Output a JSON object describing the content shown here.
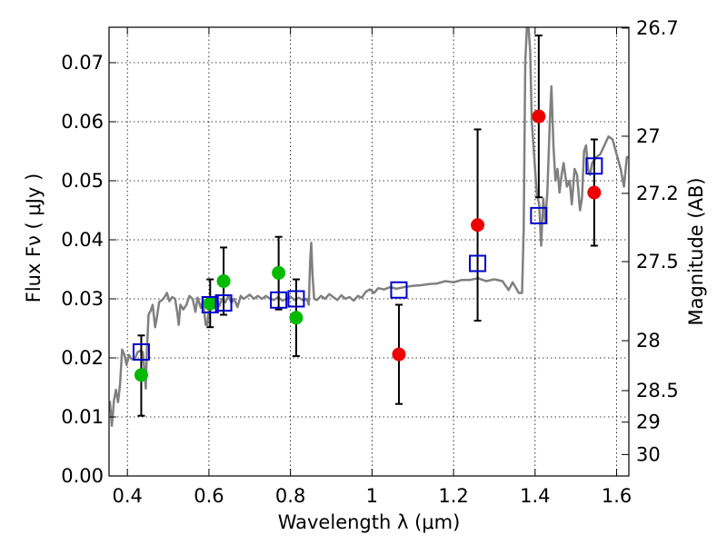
{
  "chart_data": {
    "type": "scatter",
    "title": "",
    "xlabel": "Wavelength  λ (μm)",
    "ylabel": "Flux  Fν  ( μJy )",
    "ylabel_right": "Magnitude (AB)",
    "xlim": [
      0.355,
      1.63
    ],
    "ylim": [
      0.0,
      0.076
    ],
    "grid": true,
    "x_ticks": [
      {
        "value": 0.4,
        "label": "0.4"
      },
      {
        "value": 0.6,
        "label": "0.6"
      },
      {
        "value": 0.8,
        "label": "0.8"
      },
      {
        "value": 1.0,
        "label": "1"
      },
      {
        "value": 1.2,
        "label": "1.2"
      },
      {
        "value": 1.4,
        "label": "1.4"
      },
      {
        "value": 1.6,
        "label": "1.6"
      }
    ],
    "y_ticks": [
      {
        "value": 0.0,
        "label": "0.00"
      },
      {
        "value": 0.01,
        "label": "0.01"
      },
      {
        "value": 0.02,
        "label": "0.02"
      },
      {
        "value": 0.03,
        "label": "0.03"
      },
      {
        "value": 0.04,
        "label": "0.04"
      },
      {
        "value": 0.05,
        "label": "0.05"
      },
      {
        "value": 0.06,
        "label": "0.06"
      },
      {
        "value": 0.07,
        "label": "0.07"
      }
    ],
    "right_ticks": [
      {
        "label": "26.7"
      },
      {
        "label": "27"
      },
      {
        "label": "27.2"
      },
      {
        "label": "27.5"
      },
      {
        "label": "28"
      },
      {
        "label": "28.5"
      },
      {
        "label": "29"
      },
      {
        "label": "30"
      }
    ],
    "spectrum": [
      [
        0.357,
        0.0127
      ],
      [
        0.362,
        0.0085
      ],
      [
        0.367,
        0.0128
      ],
      [
        0.372,
        0.0146
      ],
      [
        0.377,
        0.0125
      ],
      [
        0.382,
        0.0155
      ],
      [
        0.387,
        0.0214
      ],
      [
        0.393,
        0.0205
      ],
      [
        0.398,
        0.0188
      ],
      [
        0.404,
        0.0205
      ],
      [
        0.41,
        0.0198
      ],
      [
        0.418,
        0.0198
      ],
      [
        0.425,
        0.021
      ],
      [
        0.432,
        0.0212
      ],
      [
        0.438,
        0.021
      ],
      [
        0.442,
        0.0177
      ],
      [
        0.445,
        0.0148
      ],
      [
        0.448,
        0.0215
      ],
      [
        0.452,
        0.0273
      ],
      [
        0.457,
        0.028
      ],
      [
        0.462,
        0.029
      ],
      [
        0.468,
        0.0252
      ],
      [
        0.472,
        0.0267
      ],
      [
        0.478,
        0.0295
      ],
      [
        0.485,
        0.0298
      ],
      [
        0.49,
        0.0302
      ],
      [
        0.497,
        0.031
      ],
      [
        0.503,
        0.0296
      ],
      [
        0.51,
        0.0303
      ],
      [
        0.517,
        0.03
      ],
      [
        0.523,
        0.0273
      ],
      [
        0.526,
        0.0256
      ],
      [
        0.53,
        0.029
      ],
      [
        0.537,
        0.0282
      ],
      [
        0.545,
        0.029
      ],
      [
        0.552,
        0.0305
      ],
      [
        0.56,
        0.03
      ],
      [
        0.567,
        0.0278
      ],
      [
        0.572,
        0.0302
      ],
      [
        0.58,
        0.0285
      ],
      [
        0.586,
        0.0297
      ],
      [
        0.592,
        0.0256
      ],
      [
        0.596,
        0.0256
      ],
      [
        0.602,
        0.0298
      ],
      [
        0.61,
        0.0293
      ],
      [
        0.618,
        0.0305
      ],
      [
        0.625,
        0.0287
      ],
      [
        0.632,
        0.03
      ],
      [
        0.64,
        0.0294
      ],
      [
        0.648,
        0.0305
      ],
      [
        0.655,
        0.0293
      ],
      [
        0.662,
        0.03
      ],
      [
        0.67,
        0.0286
      ],
      [
        0.678,
        0.0305
      ],
      [
        0.685,
        0.03
      ],
      [
        0.692,
        0.0303
      ],
      [
        0.7,
        0.0307
      ],
      [
        0.71,
        0.03
      ],
      [
        0.72,
        0.0305
      ],
      [
        0.73,
        0.03
      ],
      [
        0.74,
        0.0305
      ],
      [
        0.75,
        0.03
      ],
      [
        0.76,
        0.0298
      ],
      [
        0.77,
        0.0303
      ],
      [
        0.78,
        0.0297
      ],
      [
        0.79,
        0.03
      ],
      [
        0.8,
        0.0304
      ],
      [
        0.81,
        0.0298
      ],
      [
        0.82,
        0.0302
      ],
      [
        0.83,
        0.0298
      ],
      [
        0.84,
        0.03
      ],
      [
        0.845,
        0.029
      ],
      [
        0.848,
        0.036
      ],
      [
        0.851,
        0.0395
      ],
      [
        0.854,
        0.034
      ],
      [
        0.858,
        0.03
      ],
      [
        0.865,
        0.0298
      ],
      [
        0.875,
        0.0305
      ],
      [
        0.885,
        0.03
      ],
      [
        0.895,
        0.0308
      ],
      [
        0.905,
        0.0303
      ],
      [
        0.915,
        0.0298
      ],
      [
        0.925,
        0.0306
      ],
      [
        0.935,
        0.03
      ],
      [
        0.945,
        0.0303
      ],
      [
        0.955,
        0.0297
      ],
      [
        0.965,
        0.0305
      ],
      [
        0.975,
        0.0302
      ],
      [
        0.985,
        0.0312
      ],
      [
        0.995,
        0.0316
      ],
      [
        1.005,
        0.031
      ],
      [
        1.015,
        0.0318
      ],
      [
        1.03,
        0.0316
      ],
      [
        1.045,
        0.032
      ],
      [
        1.06,
        0.0317
      ],
      [
        1.08,
        0.032
      ],
      [
        1.1,
        0.0322
      ],
      [
        1.12,
        0.0323
      ],
      [
        1.14,
        0.0325
      ],
      [
        1.16,
        0.0326
      ],
      [
        1.18,
        0.033
      ],
      [
        1.2,
        0.0328
      ],
      [
        1.22,
        0.0332
      ],
      [
        1.24,
        0.0332
      ],
      [
        1.26,
        0.0335
      ],
      [
        1.28,
        0.033
      ],
      [
        1.3,
        0.0333
      ],
      [
        1.32,
        0.033
      ],
      [
        1.335,
        0.0315
      ],
      [
        1.345,
        0.0328
      ],
      [
        1.36,
        0.031
      ],
      [
        1.368,
        0.031
      ],
      [
        1.372,
        0.042
      ],
      [
        1.376,
        0.07
      ],
      [
        1.38,
        0.076
      ],
      [
        1.384,
        0.076
      ],
      [
        1.388,
        0.072
      ],
      [
        1.392,
        0.06
      ],
      [
        1.398,
        0.054
      ],
      [
        1.404,
        0.048
      ],
      [
        1.41,
        0.046
      ],
      [
        1.415,
        0.039
      ],
      [
        1.42,
        0.047
      ],
      [
        1.425,
        0.043
      ],
      [
        1.43,
        0.048
      ],
      [
        1.436,
        0.06
      ],
      [
        1.44,
        0.066
      ],
      [
        1.445,
        0.056
      ],
      [
        1.45,
        0.05
      ],
      [
        1.455,
        0.052
      ],
      [
        1.46,
        0.048
      ],
      [
        1.465,
        0.051
      ],
      [
        1.47,
        0.053
      ],
      [
        1.478,
        0.049
      ],
      [
        1.485,
        0.05
      ],
      [
        1.49,
        0.046
      ],
      [
        1.497,
        0.052
      ],
      [
        1.503,
        0.051
      ],
      [
        1.51,
        0.045
      ],
      [
        1.515,
        0.047
      ],
      [
        1.52,
        0.055
      ],
      [
        1.525,
        0.056
      ],
      [
        1.53,
        0.052
      ],
      [
        1.535,
        0.051
      ],
      [
        1.54,
        0.053
      ],
      [
        1.55,
        0.054
      ],
      [
        1.56,
        0.0545
      ],
      [
        1.57,
        0.056
      ],
      [
        1.58,
        0.0575
      ],
      [
        1.59,
        0.057
      ],
      [
        1.6,
        0.0545
      ],
      [
        1.61,
        0.052
      ],
      [
        1.618,
        0.049
      ],
      [
        1.625,
        0.054
      ],
      [
        1.63,
        0.054
      ]
    ],
    "series": [
      {
        "marker": "circle",
        "color": "#00bb00",
        "points": [
          {
            "x": 0.434,
            "y": 0.0171
          },
          {
            "x": 0.603,
            "y": 0.0292
          },
          {
            "x": 0.636,
            "y": 0.033
          },
          {
            "x": 0.771,
            "y": 0.0344
          },
          {
            "x": 0.814,
            "y": 0.0268
          }
        ]
      },
      {
        "marker": "circle",
        "color": "#ee0000",
        "points": [
          {
            "x": 1.066,
            "y": 0.0206
          },
          {
            "x": 1.259,
            "y": 0.0425
          },
          {
            "x": 1.409,
            "y": 0.0609
          },
          {
            "x": 1.545,
            "y": 0.048
          }
        ]
      },
      {
        "marker": "square-open",
        "color": "#0000cc",
        "points": [
          {
            "x": 0.434,
            "y": 0.021
          },
          {
            "x": 0.603,
            "y": 0.029
          },
          {
            "x": 0.636,
            "y": 0.0293
          },
          {
            "x": 0.771,
            "y": 0.0298
          },
          {
            "x": 0.814,
            "y": 0.03
          },
          {
            "x": 1.066,
            "y": 0.0315
          },
          {
            "x": 1.259,
            "y": 0.036
          },
          {
            "x": 1.409,
            "y": 0.0441
          },
          {
            "x": 1.545,
            "y": 0.0525
          }
        ]
      }
    ],
    "error_bars": [
      {
        "x": 0.434,
        "low": 0.0102,
        "high": 0.0238
      },
      {
        "x": 0.603,
        "low": 0.0252,
        "high": 0.0333
      },
      {
        "x": 0.636,
        "low": 0.0273,
        "high": 0.0387
      },
      {
        "x": 0.771,
        "low": 0.0282,
        "high": 0.0405
      },
      {
        "x": 0.814,
        "low": 0.0203,
        "high": 0.0333
      },
      {
        "x": 1.066,
        "low": 0.0122,
        "high": 0.029
      },
      {
        "x": 1.259,
        "low": 0.0263,
        "high": 0.0587
      },
      {
        "x": 1.409,
        "low": 0.0472,
        "high": 0.0746
      },
      {
        "x": 1.545,
        "low": 0.039,
        "high": 0.057
      }
    ],
    "colors": {
      "spectrum": "#808080",
      "error_bar": "#000000"
    }
  }
}
